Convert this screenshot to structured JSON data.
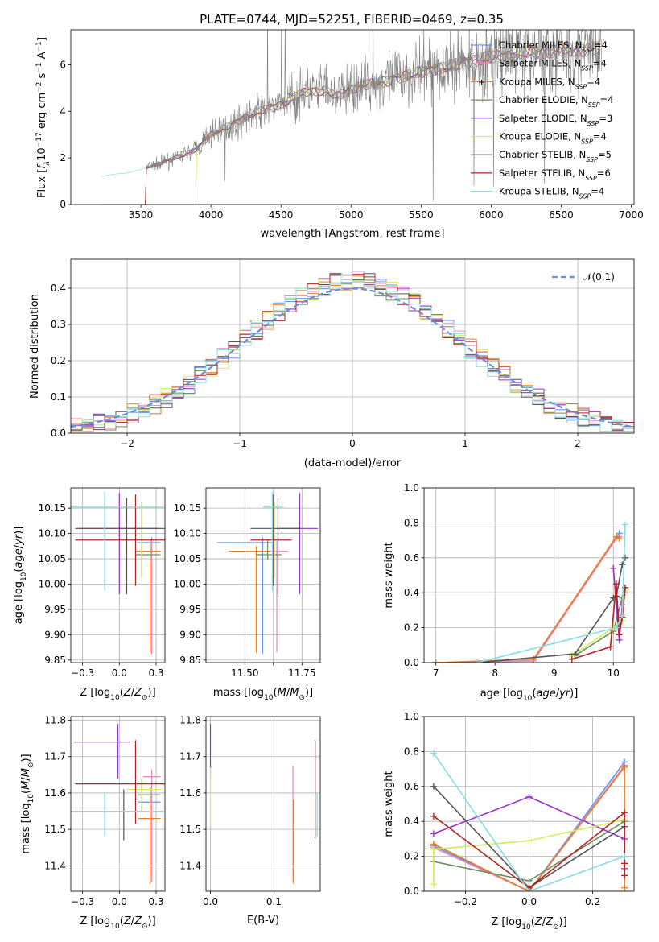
{
  "figure": {
    "title": "PLATE=0744, MJD=52251, FIBERID=0469, z=0.35"
  },
  "colors": {
    "chabrier_miles": "#6495ed",
    "salpeter_miles": "#e888c0",
    "kroupa_miles": "#e67e22",
    "chabrier_elodie": "#6b8e5a",
    "salpeter_elodie": "#9932cc",
    "kroupa_elodie": "#d4ed5a",
    "chabrier_stelib": "#555555",
    "salpeter_stelib": "#b22222",
    "kroupa_stelib": "#87dde6",
    "gaussian": "#6a8fd8",
    "grid": "#b0b0b0"
  },
  "chart_data": [
    {
      "id": "spectrum",
      "type": "line",
      "title": "PLATE=0744, MJD=52251, FIBERID=0469, z=0.35",
      "xlabel": "wavelength [Angstrom, rest frame]",
      "ylabel": "Flux [f_λ 10^-17 erg cm^-2 s^-1 A^-1]",
      "xlim": [
        3000,
        7020
      ],
      "ylim": [
        0,
        7.5
      ],
      "xticks": [
        3500,
        4000,
        4500,
        5000,
        5500,
        6000,
        6500,
        7000
      ],
      "yticks": [
        0,
        2,
        4,
        6
      ],
      "grid": false,
      "legend_position": "top-right",
      "continuum": {
        "x": [
          3220,
          3300,
          3400,
          3500,
          3600,
          3700,
          3800,
          3900,
          4000,
          4100,
          4200,
          4300,
          4400,
          4500,
          4600,
          4700,
          4800,
          4900,
          5000,
          5100,
          5200,
          5300,
          5400,
          5500,
          5600,
          5700,
          5800,
          5900,
          6000,
          6100,
          6200,
          6300,
          6400,
          6500,
          6600,
          6700,
          6790
        ],
        "y": [
          1.2,
          1.3,
          1.35,
          1.5,
          1.7,
          1.9,
          2.1,
          2.4,
          3.0,
          3.3,
          3.6,
          3.9,
          4.1,
          4.3,
          4.6,
          4.9,
          4.9,
          4.6,
          5.0,
          5.1,
          5.2,
          5.4,
          5.5,
          5.7,
          5.8,
          5.9,
          6.1,
          6.2,
          6.3,
          6.4,
          6.45,
          6.5,
          6.6,
          6.6,
          6.65,
          6.7,
          6.7
        ]
      },
      "series": [
        {
          "name": "Chabrier MILES",
          "nssp": "4",
          "color_key": "chabrier_miles"
        },
        {
          "name": "Salpeter MILES",
          "nssp": "4",
          "color_key": "salpeter_miles"
        },
        {
          "name": "Kroupa MILES",
          "nssp": "4",
          "color_key": "kroupa_miles"
        },
        {
          "name": "Chabrier ELODIE",
          "nssp": "4",
          "color_key": "chabrier_elodie"
        },
        {
          "name": "Salpeter ELODIE",
          "nssp": "3",
          "color_key": "salpeter_elodie"
        },
        {
          "name": "Kroupa ELODIE",
          "nssp": "4",
          "color_key": "kroupa_elodie"
        },
        {
          "name": "Chabrier STELIB",
          "nssp": "5",
          "color_key": "chabrier_stelib"
        },
        {
          "name": "Salpeter STELIB",
          "nssp": "6",
          "color_key": "salpeter_stelib"
        },
        {
          "name": "Kroupa STELIB",
          "nssp": "4",
          "color_key": "kroupa_stelib"
        }
      ]
    },
    {
      "id": "residuals",
      "type": "histogram",
      "xlabel": "(data-model)/error",
      "ylabel": "Normed distribution",
      "xlim": [
        -2.5,
        2.5
      ],
      "ylim": [
        0,
        0.48
      ],
      "xticks": [
        -2,
        -1,
        0,
        1,
        2
      ],
      "yticks": [
        0.0,
        0.1,
        0.2,
        0.3,
        0.4
      ],
      "grid": true,
      "legend_position": "top-right",
      "legend_label": "𝒩(0,1)",
      "bin_width": 0.1,
      "bins_start": -2.5
    },
    {
      "id": "age_vs_Z",
      "type": "errorbar",
      "xlabel": "Z [log10(Z/Z⊙)]",
      "ylabel": "age  [log10(age/yr)]",
      "xlim": [
        -0.33,
        0.31
      ],
      "ylim": [
        9.845,
        10.19
      ],
      "xticks": [
        -0.25,
        0.0,
        0.25
      ],
      "yticks": [
        9.85,
        9.9,
        9.95,
        10.0,
        10.05,
        10.1,
        10.15
      ],
      "grid": true,
      "points": [
        {
          "color_key": "chabrier_miles",
          "x": 0.22,
          "y": 10.082,
          "xerr": [
            0.1,
            0.06
          ],
          "yerr": [
            0.22,
            0.01
          ]
        },
        {
          "color_key": "salpeter_miles",
          "x": 0.22,
          "y": 10.065,
          "xerr": [
            0.08,
            0.06
          ],
          "yerr": [
            0.2,
            0.02
          ]
        },
        {
          "color_key": "kroupa_miles",
          "x": 0.21,
          "y": 10.065,
          "xerr": [
            0.1,
            0.07
          ],
          "yerr": [
            0.2,
            0.01
          ]
        },
        {
          "color_key": "chabrier_elodie",
          "x": 0.21,
          "y": 10.058,
          "xerr": [
            0.1,
            0.07
          ],
          "yerr": [
            0.01,
            0.03
          ]
        },
        {
          "color_key": "salpeter_elodie",
          "x": 0.0,
          "y": 10.11,
          "xerr": [
            0.28,
            0.27
          ],
          "yerr": [
            0.13,
            0.07
          ]
        },
        {
          "color_key": "kroupa_elodie",
          "x": 0.15,
          "y": 10.152,
          "xerr": [
            0.16,
            0.13
          ],
          "yerr": [
            0.14,
            0.01
          ]
        },
        {
          "color_key": "chabrier_stelib",
          "x": 0.05,
          "y": 10.11,
          "xerr": [
            0.35,
            0.27
          ],
          "yerr": [
            0.13,
            0.06
          ]
        },
        {
          "color_key": "salpeter_stelib",
          "x": 0.11,
          "y": 10.087,
          "xerr": [
            0.41,
            0.2
          ],
          "yerr": [
            0.09,
            0.09
          ]
        },
        {
          "color_key": "kroupa_stelib",
          "x": -0.1,
          "y": 10.152,
          "xerr": [
            0.25,
            0.4
          ],
          "yerr": [
            0.165,
            0.03
          ]
        }
      ]
    },
    {
      "id": "age_vs_mass",
      "type": "errorbar",
      "xlabel": "mass [log10(M/M⊙)]",
      "ylabel": "",
      "xlim": [
        11.33,
        11.83
      ],
      "ylim": [
        9.845,
        10.19
      ],
      "xticks": [
        11.5,
        11.625,
        11.75
      ],
      "xticklabels": [
        "11.50",
        "",
        "11.75"
      ],
      "yticks": [
        9.85,
        9.9,
        9.95,
        10.0,
        10.05,
        10.1,
        10.15
      ],
      "grid": true,
      "points": [
        {
          "color_key": "chabrier_miles",
          "x": 11.578,
          "y": 10.082,
          "xerr": [
            0.2,
            0.05
          ],
          "yerr": [
            0.22,
            0.01
          ]
        },
        {
          "color_key": "salpeter_miles",
          "x": 11.64,
          "y": 10.065,
          "xerr": [
            0.05,
            0.05
          ],
          "yerr": [
            0.2,
            0.02
          ]
        },
        {
          "color_key": "kroupa_miles",
          "x": 11.55,
          "y": 10.065,
          "xerr": [
            0.12,
            0.06
          ],
          "yerr": [
            0.2,
            0.01
          ]
        },
        {
          "color_key": "chabrier_elodie",
          "x": 11.6,
          "y": 10.058,
          "xerr": [
            0.05,
            0.06
          ],
          "yerr": [
            0.01,
            0.03
          ]
        },
        {
          "color_key": "salpeter_elodie",
          "x": 11.74,
          "y": 10.11,
          "xerr": [
            0.1,
            0.08
          ],
          "yerr": [
            0.13,
            0.07
          ]
        },
        {
          "color_key": "kroupa_elodie",
          "x": 11.63,
          "y": 10.152,
          "xerr": [
            0.04,
            0.04
          ],
          "yerr": [
            0.14,
            0.01
          ]
        },
        {
          "color_key": "chabrier_stelib",
          "x": 11.645,
          "y": 10.11,
          "xerr": [
            0.12,
            0.1
          ],
          "yerr": [
            0.13,
            0.06
          ]
        },
        {
          "color_key": "salpeter_stelib",
          "x": 11.625,
          "y": 10.087,
          "xerr": [
            0.1,
            0.08
          ],
          "yerr": [
            0.09,
            0.09
          ]
        },
        {
          "color_key": "kroupa_stelib",
          "x": 11.62,
          "y": 10.152,
          "xerr": [
            0.04,
            0.04
          ],
          "yerr": [
            0.165,
            0.03
          ]
        }
      ]
    },
    {
      "id": "weight_vs_age",
      "type": "line",
      "xlabel": "age  [log10(age/yr)]",
      "ylabel": "mass weight",
      "xlim": [
        6.8,
        10.35
      ],
      "ylim": [
        0,
        1.0
      ],
      "xticks": [
        7,
        8,
        9,
        10
      ],
      "yticks": [
        0.0,
        0.2,
        0.4,
        0.6,
        0.8,
        1.0
      ],
      "grid": true,
      "series": [
        {
          "color_key": "chabrier_miles",
          "x": [
            7.0,
            8.65,
            10.05,
            10.1
          ],
          "y": [
            0.0,
            0.01,
            0.72,
            0.74
          ]
        },
        {
          "color_key": "salpeter_miles",
          "x": [
            7.0,
            8.65,
            10.05,
            10.1
          ],
          "y": [
            0.0,
            0.01,
            0.71,
            0.72
          ]
        },
        {
          "color_key": "kroupa_miles",
          "x": [
            7.0,
            8.65,
            10.05,
            10.1
          ],
          "y": [
            0.0,
            0.02,
            0.72,
            0.71
          ]
        },
        {
          "color_key": "chabrier_elodie",
          "x": [
            9.35,
            10.0,
            10.15,
            10.2
          ],
          "y": [
            0.04,
            0.18,
            0.37,
            0.4
          ]
        },
        {
          "color_key": "salpeter_elodie",
          "x": [
            10.0,
            10.1,
            10.15
          ],
          "y": [
            0.54,
            0.13,
            0.33
          ]
        },
        {
          "color_key": "kroupa_elodie",
          "x": [
            9.3,
            10.0,
            10.15,
            10.2
          ],
          "y": [
            0.04,
            0.2,
            0.24,
            0.41
          ]
        },
        {
          "color_key": "chabrier_stelib",
          "x": [
            7.7,
            9.35,
            10.0,
            10.05,
            10.15,
            10.2
          ],
          "y": [
            0.0,
            0.05,
            0.37,
            0.38,
            0.56,
            0.6
          ]
        },
        {
          "color_key": "salpeter_stelib",
          "x": [
            9.3,
            9.95,
            10.05,
            10.1,
            10.15,
            10.2
          ],
          "y": [
            0.02,
            0.09,
            0.45,
            0.16,
            0.26,
            0.43
          ]
        },
        {
          "color_key": "kroupa_stelib",
          "x": [
            7.7,
            10.05,
            10.15,
            10.2
          ],
          "y": [
            0.0,
            0.2,
            0.27,
            0.79
          ]
        }
      ]
    },
    {
      "id": "mass_vs_Z",
      "type": "errorbar",
      "xlabel": "Z [log10(Z/Z⊙)]",
      "ylabel": "mass [log10(M/M⊙)]",
      "xlim": [
        -0.33,
        0.31
      ],
      "ylim": [
        11.33,
        11.81
      ],
      "xticks": [
        -0.25,
        0.0,
        0.25
      ],
      "yticks": [
        11.4,
        11.5,
        11.6,
        11.7,
        11.8
      ],
      "grid": true,
      "points": [
        {
          "color_key": "chabrier_miles",
          "x": 0.22,
          "y": 11.575,
          "xerr": [
            0.09,
            0.06
          ],
          "yerr": [
            0.22,
            0.02
          ]
        },
        {
          "color_key": "salpeter_miles",
          "x": 0.22,
          "y": 11.645,
          "xerr": [
            0.06,
            0.06
          ],
          "yerr": [
            0.29,
            0.02
          ]
        },
        {
          "color_key": "kroupa_miles",
          "x": 0.21,
          "y": 11.53,
          "xerr": [
            0.08,
            0.07
          ],
          "yerr": [
            0.18,
            0.08
          ]
        },
        {
          "color_key": "chabrier_elodie",
          "x": 0.21,
          "y": 11.595,
          "xerr": [
            0.08,
            0.07
          ],
          "yerr": [
            0.02,
            0.02
          ]
        },
        {
          "color_key": "salpeter_elodie",
          "x": -0.01,
          "y": 11.74,
          "xerr": [
            0.3,
            0.08
          ],
          "yerr": [
            0.1,
            0.05
          ]
        },
        {
          "color_key": "kroupa_elodie",
          "x": 0.15,
          "y": 11.61,
          "xerr": [
            0.1,
            0.14
          ],
          "yerr": [
            0.06,
            0.03
          ]
        },
        {
          "color_key": "chabrier_stelib",
          "x": 0.03,
          "y": 11.55,
          "xerr": [
            0.35,
            0.27
          ],
          "yerr": [
            0.08,
            0.06
          ]
        },
        {
          "color_key": "salpeter_stelib",
          "x": 0.11,
          "y": 11.625,
          "xerr": [
            0.41,
            0.2
          ],
          "yerr": [
            0.11,
            0.12
          ]
        },
        {
          "color_key": "kroupa_stelib",
          "x": -0.1,
          "y": 11.55,
          "xerr": [
            0.25,
            0.4
          ],
          "yerr": [
            0.07,
            0.05
          ]
        }
      ]
    },
    {
      "id": "mass_vs_ebv",
      "type": "errorbar",
      "xlabel": "E(B-V)",
      "ylabel": "",
      "xlim": [
        -0.007,
        0.173
      ],
      "ylim": [
        11.33,
        11.81
      ],
      "xticks": [
        0.0,
        0.1
      ],
      "yticks": [
        11.4,
        11.5,
        11.6,
        11.7,
        11.8
      ],
      "grid": true,
      "points": [
        {
          "color_key": "salpeter_elodie",
          "x": 0.0,
          "y": 11.74,
          "xerr": [
            0,
            0
          ],
          "yerr": [
            0.1,
            0.05
          ]
        },
        {
          "color_key": "kroupa_elodie",
          "x": 0.0,
          "y": 11.61,
          "xerr": [
            0,
            0
          ],
          "yerr": [
            0.1,
            0.06
          ]
        },
        {
          "color_key": "salpeter_miles",
          "x": 0.13,
          "y": 11.645,
          "xerr": [
            0,
            0
          ],
          "yerr": [
            0.29,
            0.03
          ]
        },
        {
          "color_key": "kroupa_miles",
          "x": 0.131,
          "y": 11.53,
          "xerr": [
            0,
            0
          ],
          "yerr": [
            0.18,
            0.05
          ]
        },
        {
          "color_key": "salpeter_stelib",
          "x": 0.165,
          "y": 11.625,
          "xerr": [
            0,
            0
          ],
          "yerr": [
            0.15,
            0.12
          ]
        },
        {
          "color_key": "kroupa_stelib",
          "x": 0.168,
          "y": 11.55,
          "xerr": [
            0,
            0
          ],
          "yerr": [
            0.07,
            0.05
          ]
        }
      ]
    },
    {
      "id": "weight_vs_Z",
      "type": "line",
      "xlabel": "Z [log10(Z/Z⊙)]",
      "ylabel": "mass weight",
      "xlim": [
        -0.33,
        0.33
      ],
      "ylim": [
        0,
        1.0
      ],
      "xticks": [
        -0.2,
        0.0,
        0.2
      ],
      "yticks": [
        0.0,
        0.2,
        0.4,
        0.6,
        0.8,
        1.0
      ],
      "grid": true,
      "series": [
        {
          "color_key": "chabrier_miles",
          "x": [
            -0.3,
            0.0,
            0.3
          ],
          "y": [
            0.26,
            0.0,
            0.74
          ]
        },
        {
          "color_key": "salpeter_miles",
          "x": [
            -0.3,
            0.0,
            0.3
          ],
          "y": [
            0.25,
            0.0,
            0.72
          ]
        },
        {
          "color_key": "kroupa_miles",
          "x": [
            -0.3,
            0.0,
            0.3,
            0.3
          ],
          "y": [
            0.27,
            0.0,
            0.71,
            0.02
          ]
        },
        {
          "color_key": "chabrier_elodie",
          "x": [
            -0.3,
            0.0,
            0.3
          ],
          "y": [
            0.17,
            0.06,
            0.4
          ]
        },
        {
          "color_key": "salpeter_elodie",
          "x": [
            -0.3,
            0.0,
            0.3,
            0.3
          ],
          "y": [
            0.33,
            0.54,
            0.3,
            0.13
          ]
        },
        {
          "color_key": "kroupa_elodie",
          "x": [
            -0.3,
            -0.3,
            0.0,
            0.3
          ],
          "y": [
            0.04,
            0.24,
            0.29,
            0.41
          ]
        },
        {
          "color_key": "chabrier_stelib",
          "x": [
            -0.3,
            0.0,
            0.3
          ],
          "y": [
            0.6,
            0.02,
            0.37
          ]
        },
        {
          "color_key": "salpeter_stelib",
          "x": [
            -0.3,
            0.0,
            0.3,
            0.3,
            0.3
          ],
          "y": [
            0.43,
            0.02,
            0.45,
            0.16,
            0.09
          ]
        },
        {
          "color_key": "kroupa_stelib",
          "x": [
            -0.3,
            0.0,
            0.3
          ],
          "y": [
            0.79,
            0.0,
            0.2
          ]
        }
      ]
    }
  ]
}
